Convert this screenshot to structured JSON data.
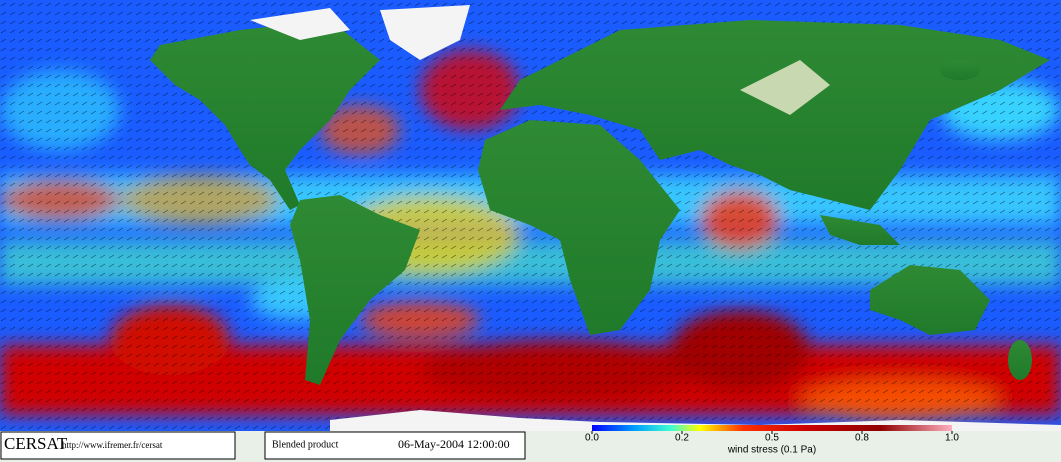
{
  "footer": {
    "brand": "CERSAT",
    "url": "http://www.ifremer.fr/cersat",
    "product": "Blended product",
    "date": "06-May-2004 12:00:00"
  },
  "colorbar": {
    "label": "wind stress (0.1 Pa)",
    "ticks": [
      {
        "value": 0,
        "label": "0.0"
      },
      0.2,
      0.5,
      0.8,
      {
        "value": 1,
        "label": "1.0"
      }
    ]
  }
}
